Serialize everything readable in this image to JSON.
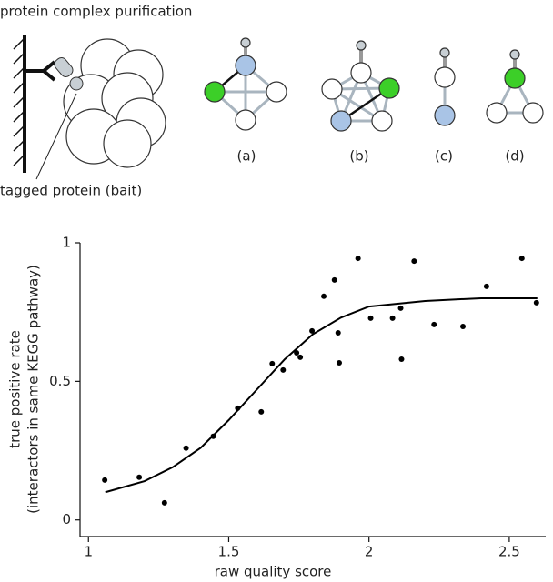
{
  "diagram": {
    "title": "protein complex purification",
    "bait_label": "tagged protein (bait)",
    "panels": [
      "(a)",
      "(b)",
      "(c)",
      "(d)"
    ]
  },
  "chart_data": {
    "type": "scatter",
    "xlabel": "raw quality score",
    "ylabel": [
      "true positive rate",
      "(interactors in same KEGG pathway)"
    ],
    "xlim": [
      0.97,
      2.63
    ],
    "ylim": [
      -0.06,
      1
    ],
    "xticks": [
      1,
      1.5,
      2,
      2.5
    ],
    "yticks": [
      0,
      0.5,
      1
    ],
    "series": [
      {
        "type": "scatter",
        "color": "#000000",
        "x": [
          1.058,
          1.181,
          1.271,
          1.348,
          1.445,
          1.532,
          1.616,
          1.655,
          1.694,
          1.742,
          1.755,
          1.797,
          1.839,
          1.877,
          1.89,
          1.894,
          1.961,
          2.006,
          2.084,
          2.113,
          2.116,
          2.161,
          2.232,
          2.335,
          2.419,
          2.545,
          2.597
        ],
        "values": [
          0.144,
          0.154,
          0.062,
          0.259,
          0.302,
          0.403,
          0.39,
          0.564,
          0.541,
          0.603,
          0.587,
          0.682,
          0.807,
          0.866,
          0.675,
          0.567,
          0.944,
          0.728,
          0.728,
          0.764,
          0.58,
          0.934,
          0.705,
          0.698,
          0.843,
          0.944,
          0.784
        ]
      },
      {
        "type": "line",
        "color": "#000000",
        "x": [
          1.06,
          1.2,
          1.3,
          1.4,
          1.5,
          1.6,
          1.7,
          1.8,
          1.9,
          2.0,
          2.2,
          2.4,
          2.6
        ],
        "values": [
          0.1,
          0.14,
          0.19,
          0.26,
          0.36,
          0.47,
          0.58,
          0.67,
          0.73,
          0.77,
          0.79,
          0.8,
          0.8
        ]
      }
    ]
  }
}
